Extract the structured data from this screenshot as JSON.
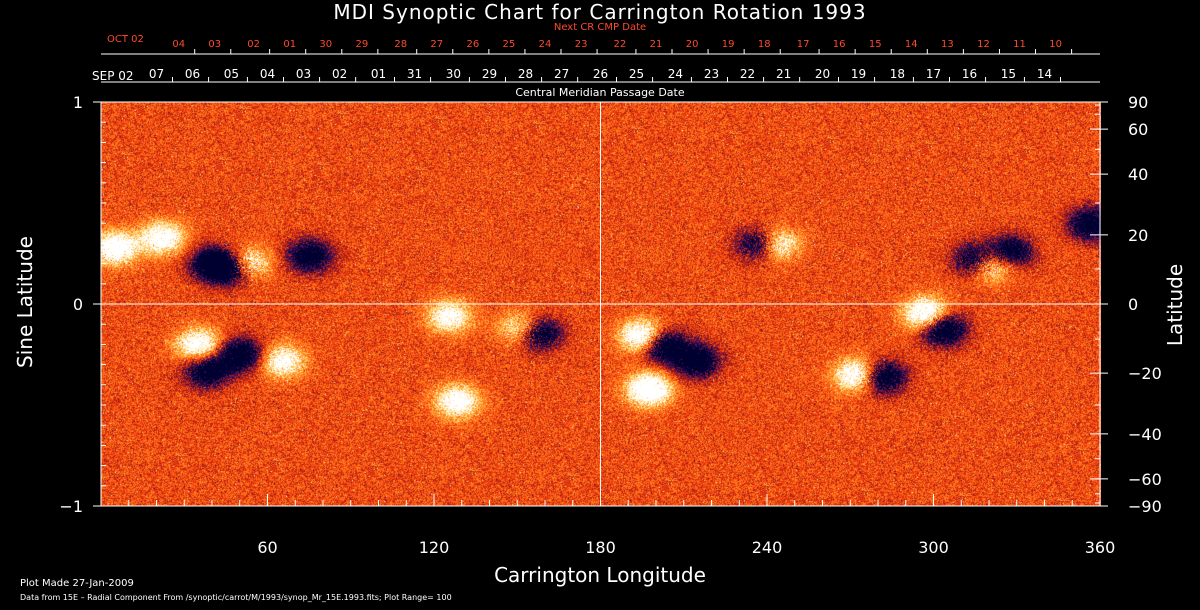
{
  "title": "MDI Synoptic Chart for Carrington Rotation 1993",
  "next_cr_label": "Next CR CMP Date",
  "cmp_label": "Central Meridian Passage Date",
  "footer": {
    "plot_made": "Plot Made 27-Jan-2009",
    "data_note": "Data from 15E – Radial Component From /synoptic/carrot/M/1993/synop_Mr_15E.1993.fits; Plot Range= 100"
  },
  "colors": {
    "background": "#000000",
    "next_cr_text": "#ff4a2a",
    "axis": "#ffffff"
  },
  "chart_data": {
    "type": "heatmap",
    "title": "MDI Synoptic Chart for Carrington Rotation 1993",
    "xlabel": "Carrington Longitude",
    "ylabel_left": "Sine Latitude",
    "ylabel_right": "Latitude",
    "xlim": [
      0,
      360
    ],
    "ylim": [
      -1,
      1
    ],
    "x_ticks": [
      60,
      120,
      180,
      240,
      300,
      360
    ],
    "left_ticks": [
      {
        "value": 1,
        "label": "1"
      },
      {
        "value": 0,
        "label": "0"
      },
      {
        "value": -1,
        "label": "−1"
      }
    ],
    "right_ticks": [
      {
        "value": 90,
        "label": "90"
      },
      {
        "value": 60,
        "label": "60"
      },
      {
        "value": 40,
        "label": "40"
      },
      {
        "value": 20,
        "label": "20"
      },
      {
        "value": 0,
        "label": "0"
      },
      {
        "value": -20,
        "label": "−20"
      },
      {
        "value": -40,
        "label": "−40"
      },
      {
        "value": -60,
        "label": "−60"
      },
      {
        "value": -90,
        "label": "−90"
      }
    ],
    "cmp_month_label": "SEP 02",
    "cmp_dates": [
      {
        "label": "07",
        "lon": 20
      },
      {
        "label": "06",
        "lon": 33
      },
      {
        "label": "05",
        "lon": 47
      },
      {
        "label": "04",
        "lon": 60
      },
      {
        "label": "03",
        "lon": 73
      },
      {
        "label": "02",
        "lon": 86
      },
      {
        "label": "01",
        "lon": 100
      },
      {
        "label": "31",
        "lon": 113
      },
      {
        "label": "30",
        "lon": 127
      },
      {
        "label": "29",
        "lon": 140
      },
      {
        "label": "28",
        "lon": 153
      },
      {
        "label": "27",
        "lon": 166
      },
      {
        "label": "26",
        "lon": 180
      },
      {
        "label": "25",
        "lon": 193
      },
      {
        "label": "24",
        "lon": 207
      },
      {
        "label": "23",
        "lon": 220
      },
      {
        "label": "22",
        "lon": 233
      },
      {
        "label": "21",
        "lon": 246
      },
      {
        "label": "20",
        "lon": 260
      },
      {
        "label": "19",
        "lon": 273
      },
      {
        "label": "18",
        "lon": 287
      },
      {
        "label": "17",
        "lon": 300
      },
      {
        "label": "16",
        "lon": 313
      },
      {
        "label": "15",
        "lon": 327
      },
      {
        "label": "14",
        "lon": 340
      }
    ],
    "next_cr_month_label": "OCT 02",
    "next_cr_dates": [
      {
        "label": "04",
        "lon": 28
      },
      {
        "label": "03",
        "lon": 41
      },
      {
        "label": "02",
        "lon": 55
      },
      {
        "label": "01",
        "lon": 68
      },
      {
        "label": "30",
        "lon": 81
      },
      {
        "label": "29",
        "lon": 94
      },
      {
        "label": "28",
        "lon": 108
      },
      {
        "label": "27",
        "lon": 121
      },
      {
        "label": "26",
        "lon": 134
      },
      {
        "label": "25",
        "lon": 147
      },
      {
        "label": "24",
        "lon": 160
      },
      {
        "label": "23",
        "lon": 173
      },
      {
        "label": "22",
        "lon": 187
      },
      {
        "label": "21",
        "lon": 200
      },
      {
        "label": "20",
        "lon": 213
      },
      {
        "label": "19",
        "lon": 226
      },
      {
        "label": "18",
        "lon": 239
      },
      {
        "label": "17",
        "lon": 253
      },
      {
        "label": "16",
        "lon": 266
      },
      {
        "label": "15",
        "lon": 279
      },
      {
        "label": "14",
        "lon": 292
      },
      {
        "label": "13",
        "lon": 305
      },
      {
        "label": "12",
        "lon": 318
      },
      {
        "label": "11",
        "lon": 331
      },
      {
        "label": "10",
        "lon": 344
      }
    ],
    "colormap": [
      "#000030",
      "#3a1060",
      "#b01a10",
      "#ff4a10",
      "#ff8a20",
      "#ffd060",
      "#ffffff"
    ],
    "active_regions": [
      {
        "lon": 5,
        "sinlat": 0.28,
        "polarity": "+",
        "strength": 0.9
      },
      {
        "lon": 22,
        "sinlat": 0.33,
        "polarity": "+",
        "strength": 0.8
      },
      {
        "lon": 40,
        "sinlat": 0.2,
        "polarity": "-",
        "strength": 0.9
      },
      {
        "lon": 48,
        "sinlat": 0.18,
        "polarity": "-",
        "strength": 1.0
      },
      {
        "lon": 52,
        "sinlat": 0.2,
        "polarity": "+",
        "strength": 1.0
      },
      {
        "lon": 75,
        "sinlat": 0.24,
        "polarity": "-",
        "strength": 0.8
      },
      {
        "lon": 35,
        "sinlat": -0.2,
        "polarity": "+",
        "strength": 0.8
      },
      {
        "lon": 50,
        "sinlat": -0.25,
        "polarity": "-",
        "strength": 0.9
      },
      {
        "lon": 38,
        "sinlat": -0.33,
        "polarity": "-",
        "strength": 0.8
      },
      {
        "lon": 65,
        "sinlat": -0.28,
        "polarity": "+",
        "strength": 0.7
      },
      {
        "lon": 125,
        "sinlat": -0.06,
        "polarity": "+",
        "strength": 0.7
      },
      {
        "lon": 152,
        "sinlat": -0.12,
        "polarity": "+",
        "strength": 0.8
      },
      {
        "lon": 157,
        "sinlat": -0.14,
        "polarity": "-",
        "strength": 1.0
      },
      {
        "lon": 128,
        "sinlat": -0.48,
        "polarity": "+",
        "strength": 0.8
      },
      {
        "lon": 195,
        "sinlat": -0.16,
        "polarity": "+",
        "strength": 1.0
      },
      {
        "lon": 202,
        "sinlat": -0.2,
        "polarity": "-",
        "strength": 1.0
      },
      {
        "lon": 214,
        "sinlat": -0.28,
        "polarity": "-",
        "strength": 0.9
      },
      {
        "lon": 197,
        "sinlat": -0.42,
        "polarity": "+",
        "strength": 1.0
      },
      {
        "lon": 243,
        "sinlat": 0.3,
        "polarity": "+",
        "strength": 0.8
      },
      {
        "lon": 237,
        "sinlat": 0.3,
        "polarity": "-",
        "strength": 0.8
      },
      {
        "lon": 272,
        "sinlat": -0.35,
        "polarity": "+",
        "strength": 0.9
      },
      {
        "lon": 281,
        "sinlat": -0.36,
        "polarity": "-",
        "strength": 0.9
      },
      {
        "lon": 297,
        "sinlat": -0.05,
        "polarity": "+",
        "strength": 1.0
      },
      {
        "lon": 303,
        "sinlat": -0.12,
        "polarity": "-",
        "strength": 1.0
      },
      {
        "lon": 315,
        "sinlat": 0.22,
        "polarity": "-",
        "strength": 0.9
      },
      {
        "lon": 320,
        "sinlat": 0.2,
        "polarity": "+",
        "strength": 0.9
      },
      {
        "lon": 327,
        "sinlat": 0.26,
        "polarity": "-",
        "strength": 0.8
      },
      {
        "lon": 356,
        "sinlat": 0.4,
        "polarity": "-",
        "strength": 0.8
      }
    ]
  }
}
